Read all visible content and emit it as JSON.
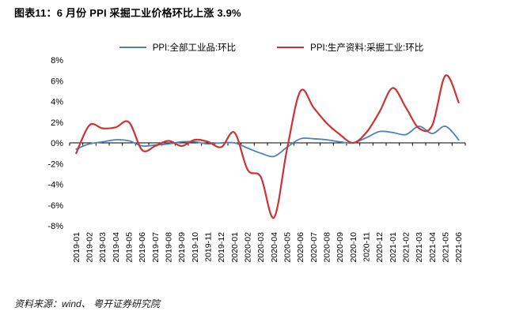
{
  "figure": {
    "title": "图表11：6 月份 PPI 采掘工业价格环比上涨 3.9%",
    "source_note": "资料来源：wind、 粤开证券研究院"
  },
  "chart_data": {
    "type": "line",
    "title": "",
    "xlabel": "",
    "ylabel": "",
    "ylim": [
      -8,
      8
    ],
    "ytick_step": 2,
    "ytick_suffix": "%",
    "grid": false,
    "legend_position": "top",
    "categories": [
      "2019-01",
      "2019-02",
      "2019-03",
      "2019-04",
      "2019-05",
      "2019-06",
      "2019-07",
      "2019-08",
      "2019-09",
      "2019-10",
      "2019-11",
      "2019-12",
      "2020-01",
      "2020-02",
      "2020-03",
      "2020-04",
      "2020-05",
      "2020-06",
      "2020-07",
      "2020-08",
      "2020-09",
      "2020-10",
      "2020-11",
      "2020-12",
      "2021-01",
      "2021-02",
      "2021-03",
      "2021-04",
      "2021-05",
      "2021-06"
    ],
    "series": [
      {
        "name": "PPI:全部工业品:环比",
        "color": "#4f81bd",
        "stroke_width": 1.8,
        "values": [
          -0.6,
          -0.1,
          0.1,
          0.3,
          0.2,
          -0.3,
          -0.2,
          -0.1,
          0.1,
          0.1,
          -0.1,
          0.0,
          0.0,
          -0.5,
          -1.0,
          -1.3,
          -0.4,
          0.4,
          0.4,
          0.3,
          0.1,
          0.0,
          0.5,
          1.1,
          1.0,
          0.8,
          1.6,
          0.9,
          1.6,
          0.3
        ]
      },
      {
        "name": "PPI:生产资料:采掘工业:环比",
        "color": "#cc3333",
        "stroke_width": 2.2,
        "values": [
          -1.0,
          1.7,
          1.4,
          1.5,
          2.0,
          -0.7,
          -0.3,
          0.2,
          -0.3,
          0.3,
          0.1,
          -0.4,
          1.0,
          -2.6,
          -3.3,
          -7.2,
          -0.5,
          5.0,
          3.4,
          1.9,
          0.8,
          0.0,
          1.0,
          3.0,
          5.3,
          3.4,
          1.4,
          1.7,
          6.5,
          3.9
        ]
      }
    ]
  }
}
